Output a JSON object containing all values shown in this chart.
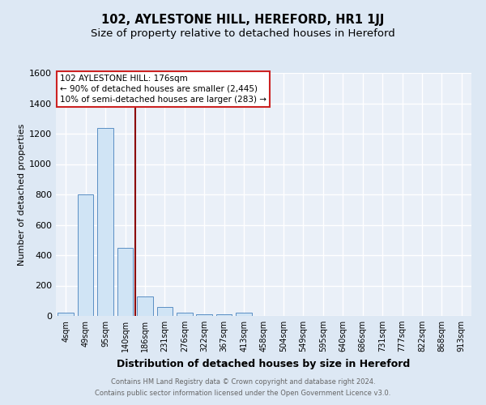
{
  "title": "102, AYLESTONE HILL, HEREFORD, HR1 1JJ",
  "subtitle": "Size of property relative to detached houses in Hereford",
  "xlabel": "Distribution of detached houses by size in Hereford",
  "ylabel": "Number of detached properties",
  "bins": [
    "4sqm",
    "49sqm",
    "95sqm",
    "140sqm",
    "186sqm",
    "231sqm",
    "276sqm",
    "322sqm",
    "367sqm",
    "413sqm",
    "458sqm",
    "504sqm",
    "549sqm",
    "595sqm",
    "640sqm",
    "686sqm",
    "731sqm",
    "777sqm",
    "822sqm",
    "868sqm",
    "913sqm"
  ],
  "values": [
    20,
    800,
    1240,
    450,
    130,
    60,
    20,
    10,
    10,
    20,
    0,
    0,
    0,
    0,
    0,
    0,
    0,
    0,
    0,
    0,
    0
  ],
  "bar_color": "#d0e4f5",
  "bar_edge_color": "#5a8fc4",
  "vline_index": 3.5,
  "vline_color": "#8b0000",
  "ylim_max": 1600,
  "yticks": [
    0,
    200,
    400,
    600,
    800,
    1000,
    1200,
    1400,
    1600
  ],
  "annotation_title": "102 AYLESTONE HILL: 176sqm",
  "annotation_line2": "← 90% of detached houses are smaller (2,445)",
  "annotation_line3": "10% of semi-detached houses are larger (283) →",
  "annotation_box_edge_color": "#cc2222",
  "bg_color": "#dde8f4",
  "plot_bg_color": "#eaf0f8",
  "title_fontsize": 10.5,
  "subtitle_fontsize": 9.5,
  "tick_fontsize": 7,
  "ylabel_fontsize": 8,
  "xlabel_fontsize": 9,
  "footer_line1": "Contains HM Land Registry data © Crown copyright and database right 2024.",
  "footer_line2": "Contains public sector information licensed under the Open Government Licence v3.0."
}
